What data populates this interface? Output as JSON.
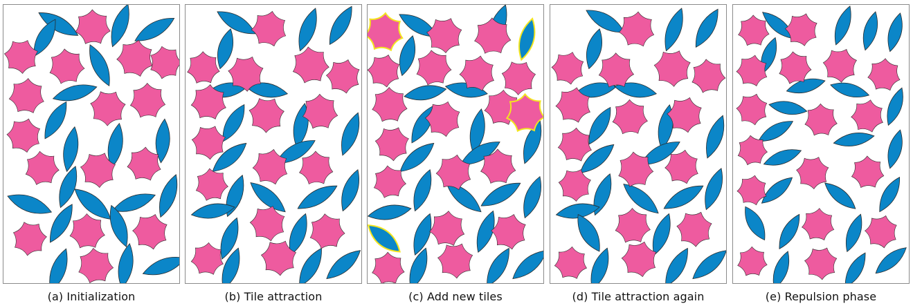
{
  "figure": {
    "colors": {
      "flower": "#ee5b9f",
      "leaf": "#0b86c8",
      "outline": "#2a2a2a",
      "highlight": "#f3e51f",
      "panel_border": "#8a8a8a"
    },
    "tile_icons": [
      "flower-tile-icon",
      "leaf-tile-icon"
    ],
    "panels": [
      {
        "id": "a",
        "caption": "(a) Initialization"
      },
      {
        "id": "b",
        "caption": "(b) Tile attraction"
      },
      {
        "id": "c",
        "caption": "(c) Add new tiles"
      },
      {
        "id": "d",
        "caption": "(d) Tile attraction again"
      },
      {
        "id": "e",
        "caption": "(e) Repulsion phase"
      }
    ]
  }
}
